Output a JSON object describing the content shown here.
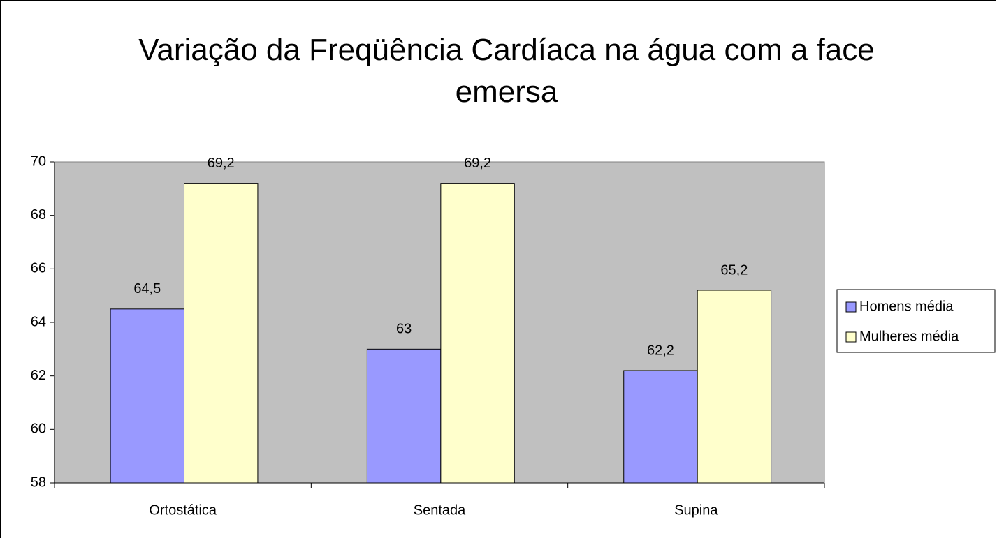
{
  "chart_data": {
    "type": "bar",
    "title": "Variação da Freqüência Cardíaca na água com a face emersa",
    "categories": [
      "Ortostática",
      "Sentada",
      "Supina"
    ],
    "series": [
      {
        "name": "Homens média",
        "color": "#9999ff",
        "values": [
          64.5,
          63,
          62.2
        ],
        "value_labels": [
          "64,5",
          "63",
          "62,2"
        ]
      },
      {
        "name": "Mulheres média",
        "color": "#ffffcc",
        "values": [
          69.2,
          69.2,
          65.2
        ],
        "value_labels": [
          "69,2",
          "69,2",
          "65,2"
        ]
      }
    ],
    "ylim": [
      58,
      70
    ],
    "yticks": [
      58,
      60,
      62,
      64,
      66,
      68,
      70
    ],
    "grid": false,
    "plot_background": "#c0c0c0",
    "legend": "right"
  }
}
